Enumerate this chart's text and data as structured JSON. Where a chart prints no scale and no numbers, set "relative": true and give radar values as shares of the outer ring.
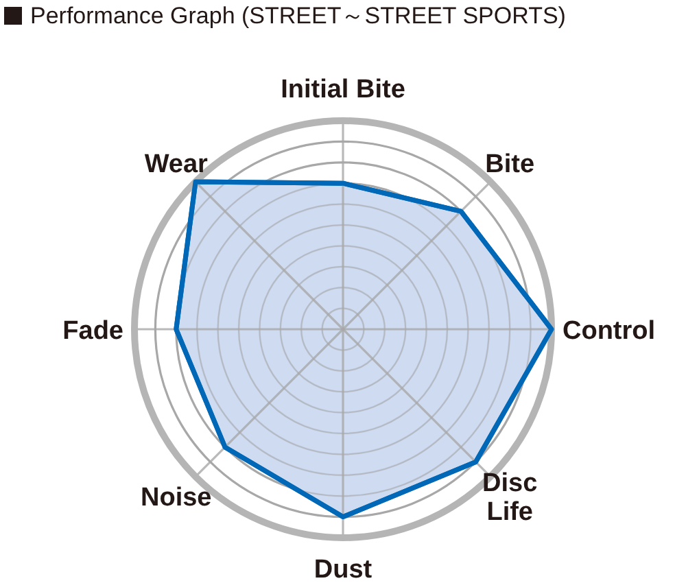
{
  "chart_data": {
    "type": "radar",
    "title": "Performance Graph (STREET～STREET SPORTS)",
    "relative": true,
    "grid": true,
    "categories": [
      "Initial Bite",
      "Bite",
      "Control",
      "Disc Life",
      "Dust",
      "Noise",
      "Fade",
      "Wear"
    ],
    "series": [
      {
        "color": "#0068b7",
        "values": [
          0.7,
          0.8,
          1,
          0.9,
          0.9,
          0.8,
          0.8,
          1
        ]
      }
    ]
  }
}
